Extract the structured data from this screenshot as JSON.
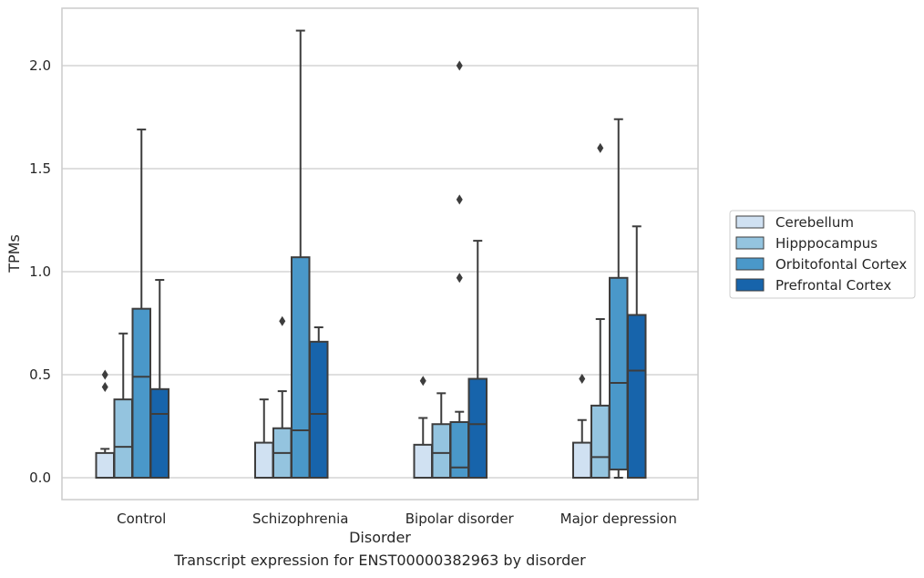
{
  "chart_data": {
    "type": "box",
    "xlabel": "Disorder",
    "ylabel": "TPMs",
    "caption": "Transcript expression for ENST00000382963 by disorder",
    "categories": [
      "Control",
      "Schizophrenia",
      "Bipolar disorder",
      "Major depression"
    ],
    "yticks": [
      "0.0",
      "0.5",
      "1.0",
      "1.5",
      "2.0"
    ],
    "ytick_values": [
      0,
      0.5,
      1.0,
      1.5,
      2.0
    ],
    "ylim": [
      -0.1,
      2.28
    ],
    "grid": "horizontal",
    "legend_position": "right",
    "series": [
      {
        "name": "Cerebellum",
        "color": "#d0e1f2",
        "boxes": [
          {
            "whisker_low": 0.0,
            "q1": 0.0,
            "median": 0.0,
            "q3": 0.12,
            "whisker_high": 0.14,
            "outliers": [
              0.44,
              0.5
            ]
          },
          {
            "whisker_low": 0.0,
            "q1": 0.0,
            "median": 0.0,
            "q3": 0.17,
            "whisker_high": 0.38,
            "outliers": []
          },
          {
            "whisker_low": 0.0,
            "q1": 0.0,
            "median": 0.0,
            "q3": 0.16,
            "whisker_high": 0.29,
            "outliers": [
              0.47
            ]
          },
          {
            "whisker_low": 0.0,
            "q1": 0.0,
            "median": 0.0,
            "q3": 0.17,
            "whisker_high": 0.28,
            "outliers": [
              0.48
            ]
          }
        ]
      },
      {
        "name": "Hipppocampus",
        "color": "#94c4df",
        "boxes": [
          {
            "whisker_low": 0.0,
            "q1": 0.0,
            "median": 0.15,
            "q3": 0.38,
            "whisker_high": 0.7,
            "outliers": []
          },
          {
            "whisker_low": 0.0,
            "q1": 0.0,
            "median": 0.12,
            "q3": 0.24,
            "whisker_high": 0.42,
            "outliers": [
              0.76
            ]
          },
          {
            "whisker_low": 0.0,
            "q1": 0.0,
            "median": 0.12,
            "q3": 0.26,
            "whisker_high": 0.41,
            "outliers": []
          },
          {
            "whisker_low": 0.0,
            "q1": 0.0,
            "median": 0.1,
            "q3": 0.35,
            "whisker_high": 0.77,
            "outliers": [
              1.6
            ]
          }
        ]
      },
      {
        "name": "Orbitofontal Cortex",
        "color": "#4a98c9",
        "boxes": [
          {
            "whisker_low": 0.0,
            "q1": 0.0,
            "median": 0.49,
            "q3": 0.82,
            "whisker_high": 1.69,
            "outliers": []
          },
          {
            "whisker_low": 0.0,
            "q1": 0.0,
            "median": 0.23,
            "q3": 1.07,
            "whisker_high": 2.17,
            "outliers": []
          },
          {
            "whisker_low": 0.0,
            "q1": 0.0,
            "median": 0.05,
            "q3": 0.27,
            "whisker_high": 0.32,
            "outliers": [
              0.97,
              1.35,
              2.0
            ]
          },
          {
            "whisker_low": 0.0,
            "q1": 0.04,
            "median": 0.46,
            "q3": 0.97,
            "whisker_high": 1.74,
            "outliers": []
          }
        ]
      },
      {
        "name": "Prefrontal Cortex",
        "color": "#1764ab",
        "boxes": [
          {
            "whisker_low": 0.0,
            "q1": 0.0,
            "median": 0.31,
            "q3": 0.43,
            "whisker_high": 0.96,
            "outliers": []
          },
          {
            "whisker_low": 0.0,
            "q1": 0.0,
            "median": 0.31,
            "q3": 0.66,
            "whisker_high": 0.73,
            "outliers": []
          },
          {
            "whisker_low": 0.0,
            "q1": 0.0,
            "median": 0.26,
            "q3": 0.48,
            "whisker_high": 1.15,
            "outliers": []
          },
          {
            "whisker_low": 0.0,
            "q1": 0.0,
            "median": 0.52,
            "q3": 0.79,
            "whisker_high": 1.22,
            "outliers": []
          }
        ]
      }
    ]
  }
}
